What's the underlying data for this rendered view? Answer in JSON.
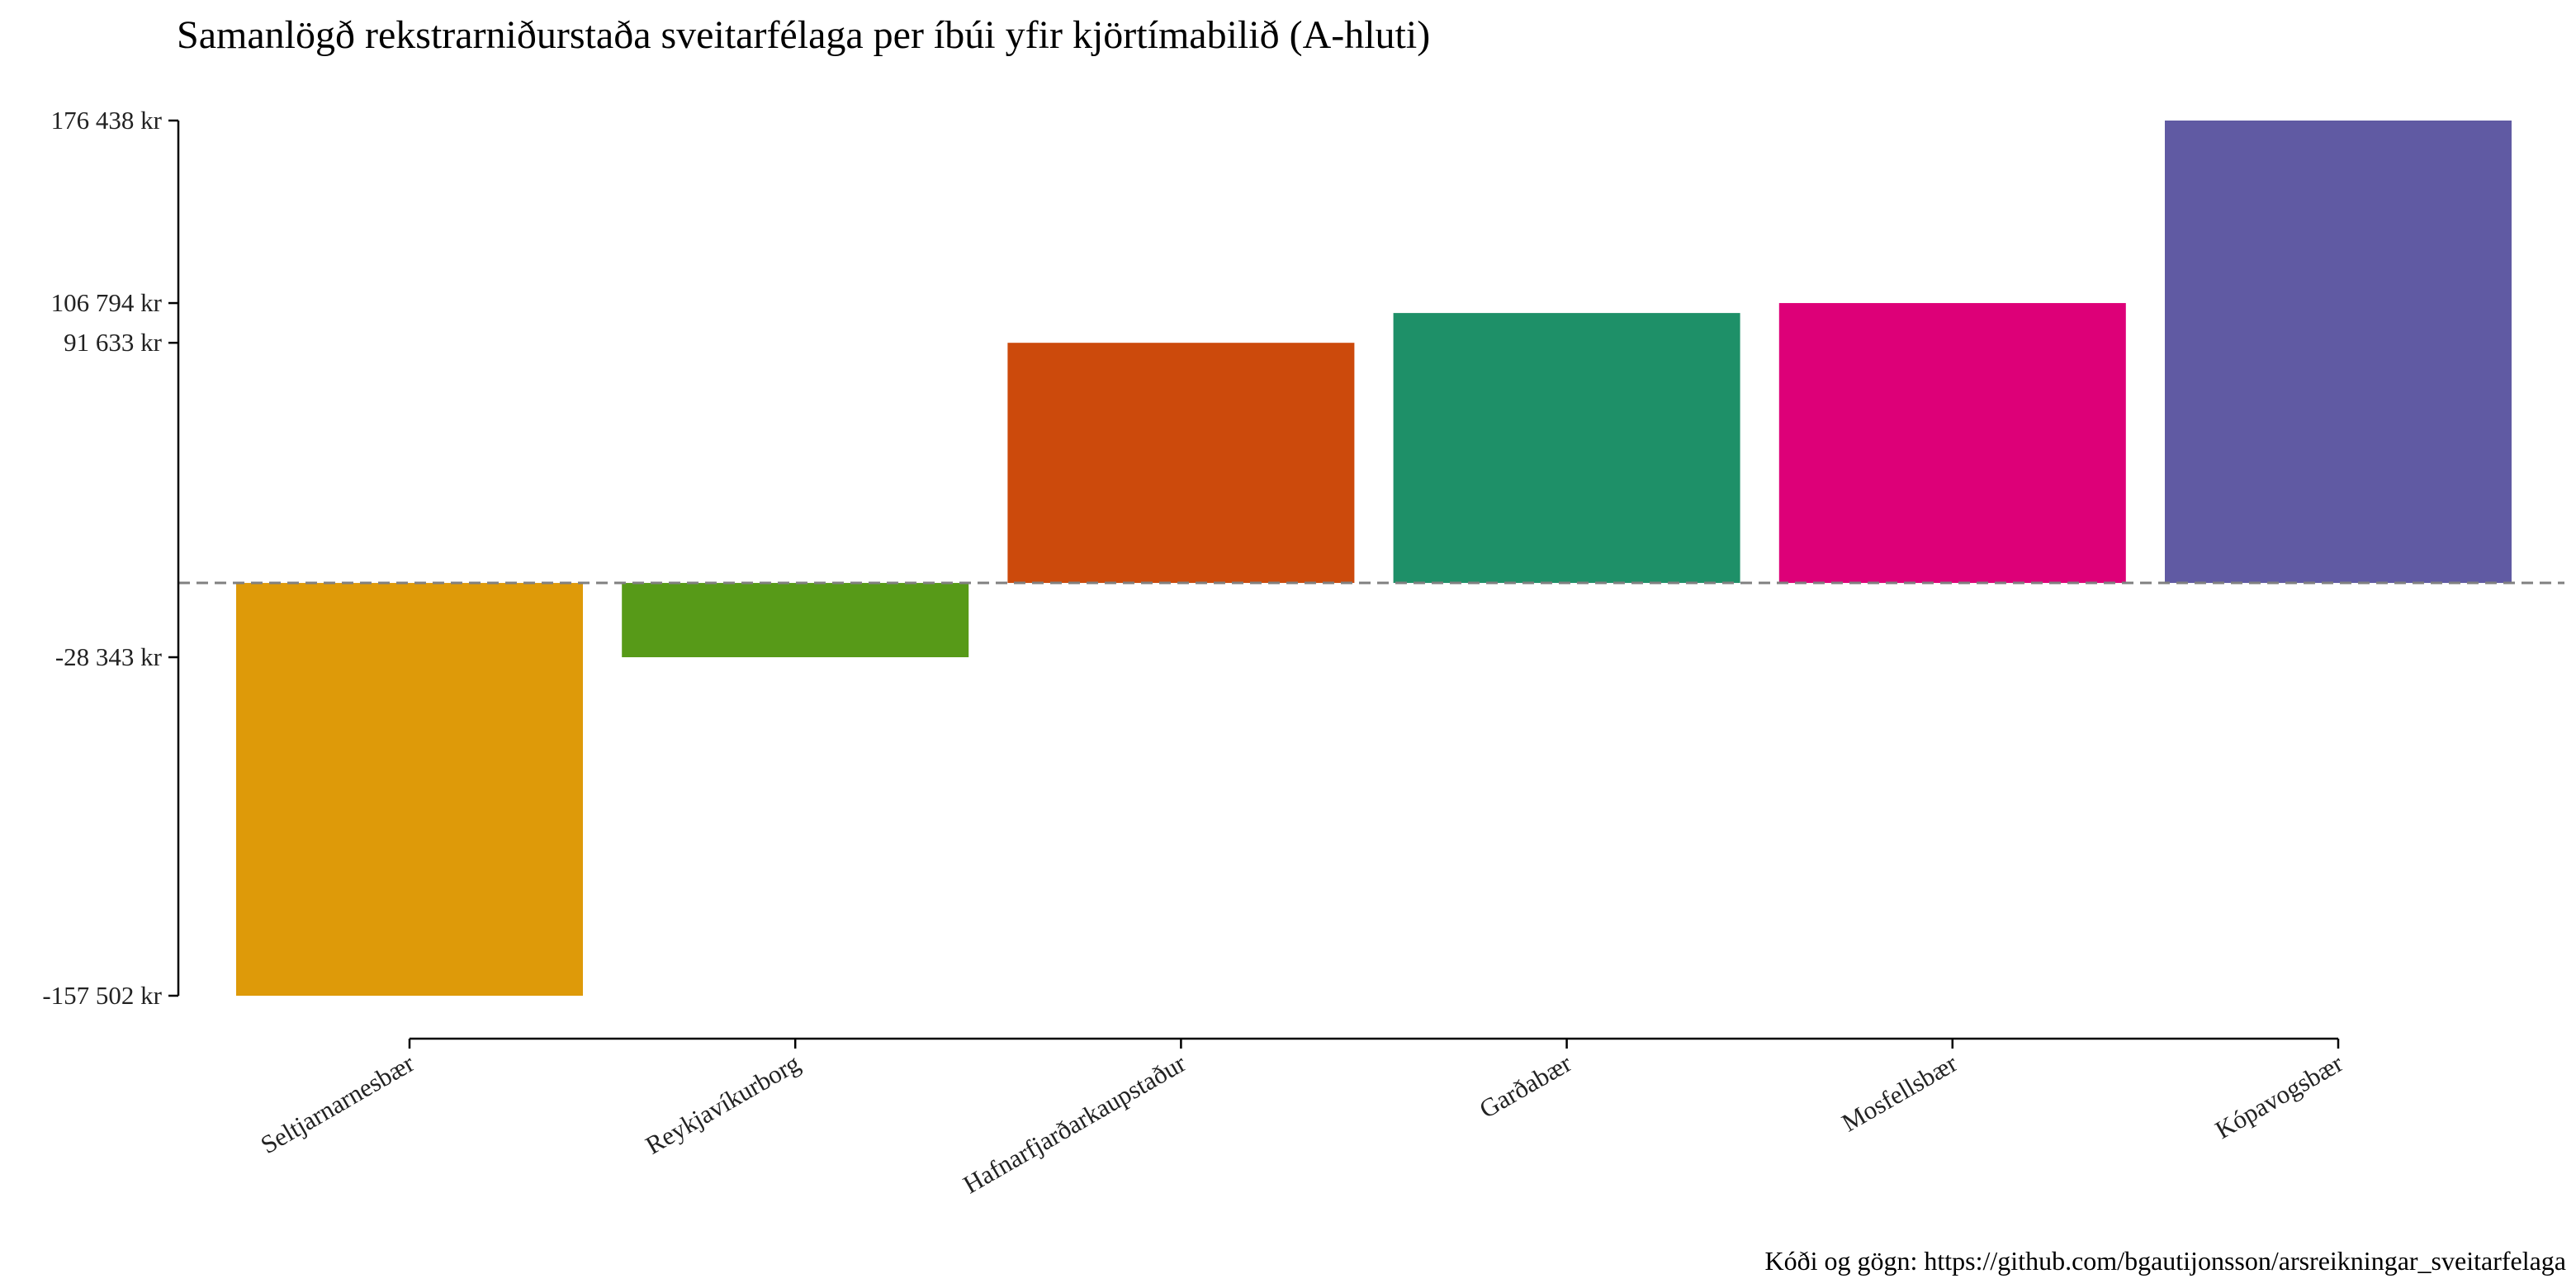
{
  "chart_data": {
    "type": "bar",
    "title": "Samanlögð rekstrarniðurstaða sveitarfélaga per íbúi yfir kjörtímabilið (A-hluti)",
    "caption": "Kóði og gögn: https://github.com/bgautijonsson/arsreikningar_sveitarfelaga",
    "xlabel": "",
    "ylabel": "",
    "categories": [
      "Seltjarnarnesbær",
      "Reykjavíkurborg",
      "Hafnarfjarðarkaupstaður",
      "Garðabær",
      "Mosfellsbær",
      "Kópavogsbær"
    ],
    "values": [
      -157502,
      -28343,
      91633,
      103000,
      106794,
      176438
    ],
    "colors": [
      "#DE9A09",
      "#579A18",
      "#CC4A0C",
      "#1E9068",
      "#DD0078",
      "#605AA3"
    ],
    "yticks": [
      176438,
      106794,
      91633,
      -28343,
      -157502
    ],
    "ytick_labels": [
      "176 438 kr",
      "106 794 kr",
      "91 633 kr",
      "-28 343 kr",
      "-157 502 kr"
    ],
    "ylim": [
      -157502,
      176438
    ],
    "reference_line": {
      "y": 0,
      "style": "dashed",
      "color": "#808080"
    },
    "grid": false,
    "legend": "none"
  }
}
